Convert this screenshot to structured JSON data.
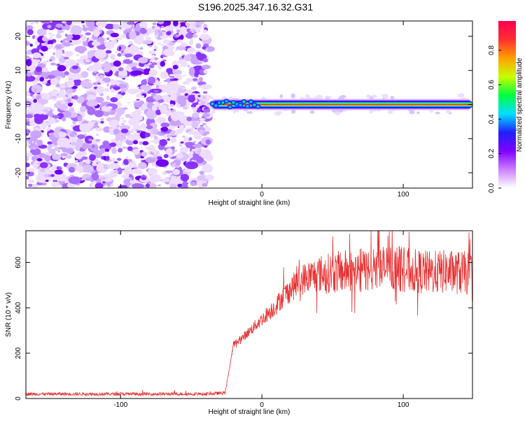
{
  "page_title": "S196.2025.347.16.32.G31",
  "chart_data": [
    {
      "type": "heatmap",
      "title": "S196.2025.347.16.32.G31",
      "xlabel": "Height of straight line (km)",
      "ylabel": "Frequency (Hz)",
      "xlim": [
        -167,
        149
      ],
      "ylim": [
        -24.5,
        24.5
      ],
      "xticks": [
        -100,
        0,
        100
      ],
      "xtick_labels": [
        "-100",
        "0",
        "100"
      ],
      "yticks": [
        -20,
        -10,
        0,
        10,
        20
      ],
      "ytick_labels": [
        "-20",
        "-10",
        "0",
        "10",
        "20"
      ],
      "noise_region_x": [
        -167,
        -37
      ],
      "signal_line_frequency": 0,
      "signal_start_x": -37,
      "colorbar": {
        "label": "Normalized spectral amplitude",
        "range": [
          0.0,
          0.97
        ],
        "ticks": [
          0.0,
          0.2,
          0.4,
          0.6,
          0.8
        ],
        "tick_labels": [
          "0.0",
          "0.2",
          "0.4",
          "0.6",
          "0.8"
        ],
        "colors": [
          "#ffffff",
          "#cc80ff",
          "#8000ff",
          "#2020ff",
          "#00e0ff",
          "#00ff40",
          "#c8ff00",
          "#ffa000",
          "#ff3030",
          "#ff0050"
        ]
      }
    },
    {
      "type": "line",
      "xlabel": "Height of straight line (km)",
      "ylabel": "SNR (10 * v/v)",
      "xlim": [
        -167,
        149
      ],
      "ylim": [
        0,
        740
      ],
      "xticks": [
        -100,
        0,
        100
      ],
      "xtick_labels": [
        "-100",
        "0",
        "100"
      ],
      "yticks": [
        0,
        200,
        400,
        600
      ],
      "ytick_labels": [
        "0",
        "200",
        "400",
        "600"
      ],
      "line_color": "#e83030",
      "trend_x": [
        -167,
        -40,
        -26,
        -22,
        -20,
        -15,
        -10,
        -5,
        0,
        5,
        10,
        15,
        20,
        25,
        30,
        40,
        50,
        60,
        70,
        80,
        90,
        100,
        110,
        120,
        130,
        140,
        149
      ],
      "trend_y": [
        20,
        20,
        25,
        170,
        240,
        260,
        290,
        320,
        350,
        380,
        410,
        450,
        480,
        510,
        530,
        550,
        555,
        560,
        565,
        570,
        580,
        570,
        560,
        555,
        560,
        555,
        550
      ]
    }
  ]
}
